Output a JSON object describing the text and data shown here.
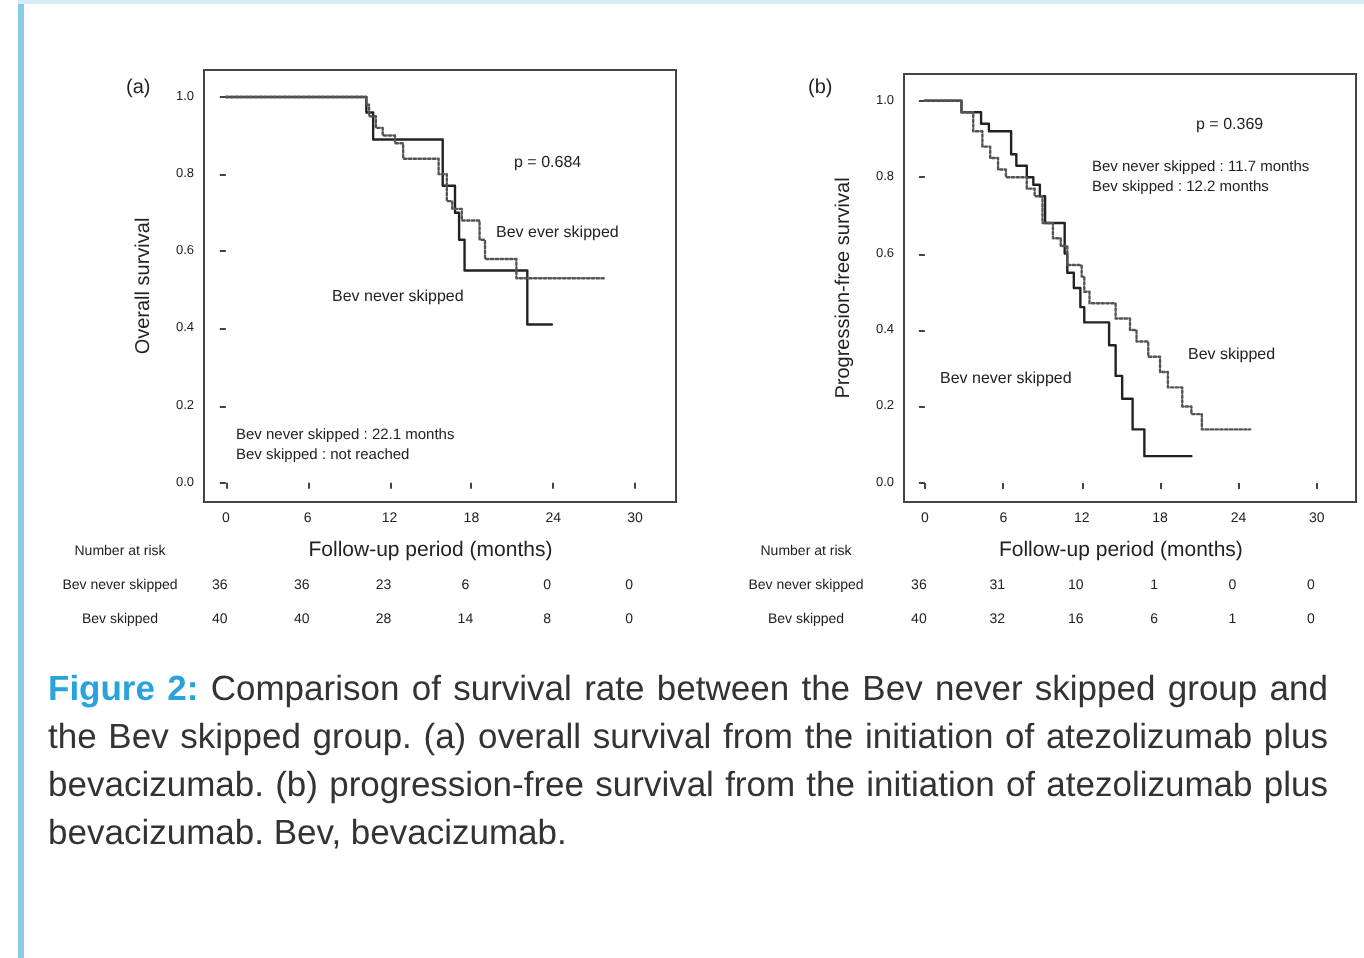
{
  "chart_data": [
    {
      "type": "step",
      "ylabel": "Overall survival",
      "xlabel": "Follow-up period (months)",
      "xlim": [
        -1.6,
        33
      ],
      "ylim": [
        -0.05,
        1.07
      ],
      "xticks": [
        0,
        6,
        12,
        18,
        24,
        30
      ],
      "yticks": [
        {
          "value": 0,
          "label": "0.0"
        },
        {
          "value": 0.2,
          "label": "0.2"
        },
        {
          "value": 0.4,
          "label": "0.4"
        },
        {
          "value": 0.6,
          "label": "0.6"
        },
        {
          "value": 0.8,
          "label": "0.8"
        },
        {
          "value": 1,
          "label": "1.0"
        }
      ],
      "grid": false,
      "legend": false,
      "series": [
        {
          "name": "Bev never skipped",
          "color": "#222222",
          "line_style": "solid",
          "x": [
            0,
            10.3,
            10.8,
            15.9,
            16.8,
            17.1,
            17.5,
            22.1,
            23.9
          ],
          "values": [
            1,
            0.96,
            0.89,
            0.77,
            0.7,
            0.63,
            0.55,
            0.41,
            0.41
          ]
        },
        {
          "name": "Bev ever skipped",
          "color": "#555555",
          "line_style": "dotted",
          "x": [
            0,
            10.3,
            10.5,
            11,
            11.5,
            12.4,
            13,
            15.6,
            16.2,
            16.6,
            17.3,
            18.6,
            19,
            21.3,
            27.8
          ],
          "values": [
            1,
            0.98,
            0.95,
            0.92,
            0.9,
            0.88,
            0.84,
            0.8,
            0.73,
            0.71,
            0.68,
            0.63,
            0.58,
            0.53,
            0.53
          ]
        }
      ],
      "annotations": [
        "(a)",
        "p = 0.684",
        "Bev never skipped : 22.1 months",
        "Bev skipped : not reached",
        "Number at risk",
        "Bev never skipped",
        "36",
        "36",
        "23",
        "6",
        "0",
        "0",
        "Bev skipped",
        "40",
        "40",
        "28",
        "14",
        "8",
        "0"
      ]
    },
    {
      "type": "step",
      "ylabel": "Progression-free survival",
      "xlabel": "Follow-up period (months)",
      "xlim": [
        -1.6,
        33
      ],
      "ylim": [
        -0.05,
        1.07
      ],
      "xticks": [
        0,
        6,
        12,
        18,
        24,
        30
      ],
      "yticks": [
        {
          "value": 0,
          "label": "0.0"
        },
        {
          "value": 0.2,
          "label": "0.2"
        },
        {
          "value": 0.4,
          "label": "0.4"
        },
        {
          "value": 0.6,
          "label": "0.6"
        },
        {
          "value": 0.8,
          "label": "0.8"
        },
        {
          "value": 1,
          "label": "1.0"
        }
      ],
      "grid": false,
      "legend": false,
      "series": [
        {
          "name": "Bev never skipped",
          "color": "#222222",
          "line_style": "solid",
          "x": [
            0,
            2.8,
            4.3,
            4.9,
            6.6,
            7,
            7.8,
            8.3,
            8.8,
            9.2,
            10.7,
            10.9,
            11.4,
            11.9,
            12.2,
            14.1,
            14.6,
            15.1,
            15.9,
            16.8,
            20.4
          ],
          "values": [
            1,
            0.97,
            0.94,
            0.92,
            0.86,
            0.83,
            0.8,
            0.78,
            0.75,
            0.68,
            0.6,
            0.55,
            0.51,
            0.46,
            0.42,
            0.36,
            0.28,
            0.22,
            0.14,
            0.07,
            0.07
          ]
        },
        {
          "name": "Bev skipped",
          "color": "#555555",
          "line_style": "dotted",
          "x": [
            0,
            2.8,
            3.7,
            4.4,
            5,
            5.6,
            6.2,
            7.8,
            8.4,
            9,
            9.8,
            10.4,
            10.9,
            12,
            12.2,
            12.6,
            14.6,
            15.7,
            16.2,
            17.1,
            18,
            18.6,
            19.7,
            20.4,
            21.2,
            24.9
          ],
          "values": [
            1,
            0.97,
            0.92,
            0.88,
            0.85,
            0.82,
            0.8,
            0.77,
            0.75,
            0.68,
            0.64,
            0.62,
            0.57,
            0.54,
            0.5,
            0.47,
            0.43,
            0.4,
            0.37,
            0.33,
            0.29,
            0.25,
            0.2,
            0.18,
            0.14,
            0.14
          ]
        }
      ],
      "annotations": [
        "(b)",
        "p = 0.369",
        "Bev never skipped : 11.7 months",
        "Bev skipped : 12.2 months",
        "Number at risk",
        "Bev never skipped",
        "36",
        "31",
        "10",
        "1",
        "0",
        "0",
        "Bev skipped",
        "40",
        "32",
        "16",
        "6",
        "1",
        "0"
      ]
    },
    {
      "type": "other",
      "annotations": [
        "Figure 2:",
        "Comparison of survival rate between the Bev never skipped group and the Bev skipped group. (a) overall survival from the initiation of atezolizumab plus bevacizumab. (b) progression-free survival from the initiation of atezolizumab plus bevacizumab. Bev, bevacizumab."
      ]
    }
  ]
}
